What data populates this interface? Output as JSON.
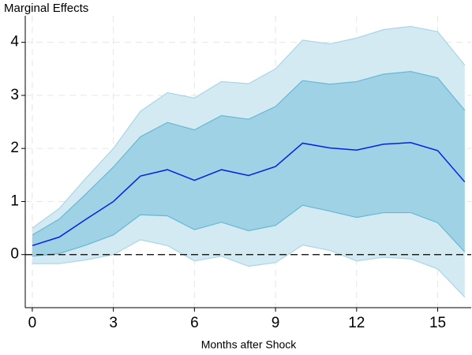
{
  "chart_data": {
    "type": "band_line",
    "ylabel": "Marginal Effects",
    "xlabel": "Months after Shock",
    "x": [
      0,
      1,
      2,
      3,
      4,
      5,
      6,
      7,
      8,
      9,
      10,
      11,
      12,
      13,
      14,
      15,
      16
    ],
    "xlim": [
      -0.26,
      16.24
    ],
    "xticks": [
      0,
      3,
      6,
      9,
      12,
      15
    ],
    "ylim": [
      -1,
      4.5
    ],
    "yticks": [
      0,
      1,
      2,
      3,
      4
    ],
    "grid": true,
    "hline": 0,
    "bands": [
      {
        "color": "#d3eaf3",
        "edge_color": "#a8d6e7",
        "upper": [
          0.5,
          0.87,
          1.45,
          2.0,
          2.7,
          3.05,
          2.95,
          3.26,
          3.22,
          3.5,
          4.04,
          3.97,
          4.08,
          4.24,
          4.3,
          4.2,
          3.57
        ],
        "lower": [
          -0.17,
          -0.17,
          -0.1,
          0.0,
          0.28,
          0.17,
          -0.12,
          -0.03,
          -0.22,
          -0.15,
          0.18,
          0.08,
          -0.12,
          -0.05,
          -0.08,
          -0.27,
          -0.8
        ]
      },
      {
        "color": "#9ed2e4",
        "edge_color": "#68b7d5",
        "upper": [
          0.37,
          0.67,
          1.15,
          1.65,
          2.22,
          2.49,
          2.35,
          2.62,
          2.55,
          2.79,
          3.28,
          3.21,
          3.26,
          3.4,
          3.45,
          3.33,
          2.72
        ],
        "lower": [
          -0.03,
          0.02,
          0.18,
          0.37,
          0.75,
          0.73,
          0.47,
          0.61,
          0.45,
          0.55,
          0.93,
          0.82,
          0.7,
          0.79,
          0.79,
          0.6,
          0.05
        ]
      }
    ],
    "line": {
      "color": "#0a1ee6",
      "values": [
        0.17,
        0.33,
        0.67,
        1.0,
        1.48,
        1.6,
        1.4,
        1.6,
        1.49,
        1.66,
        2.1,
        2.01,
        1.97,
        2.08,
        2.11,
        1.96,
        1.37
      ]
    }
  }
}
